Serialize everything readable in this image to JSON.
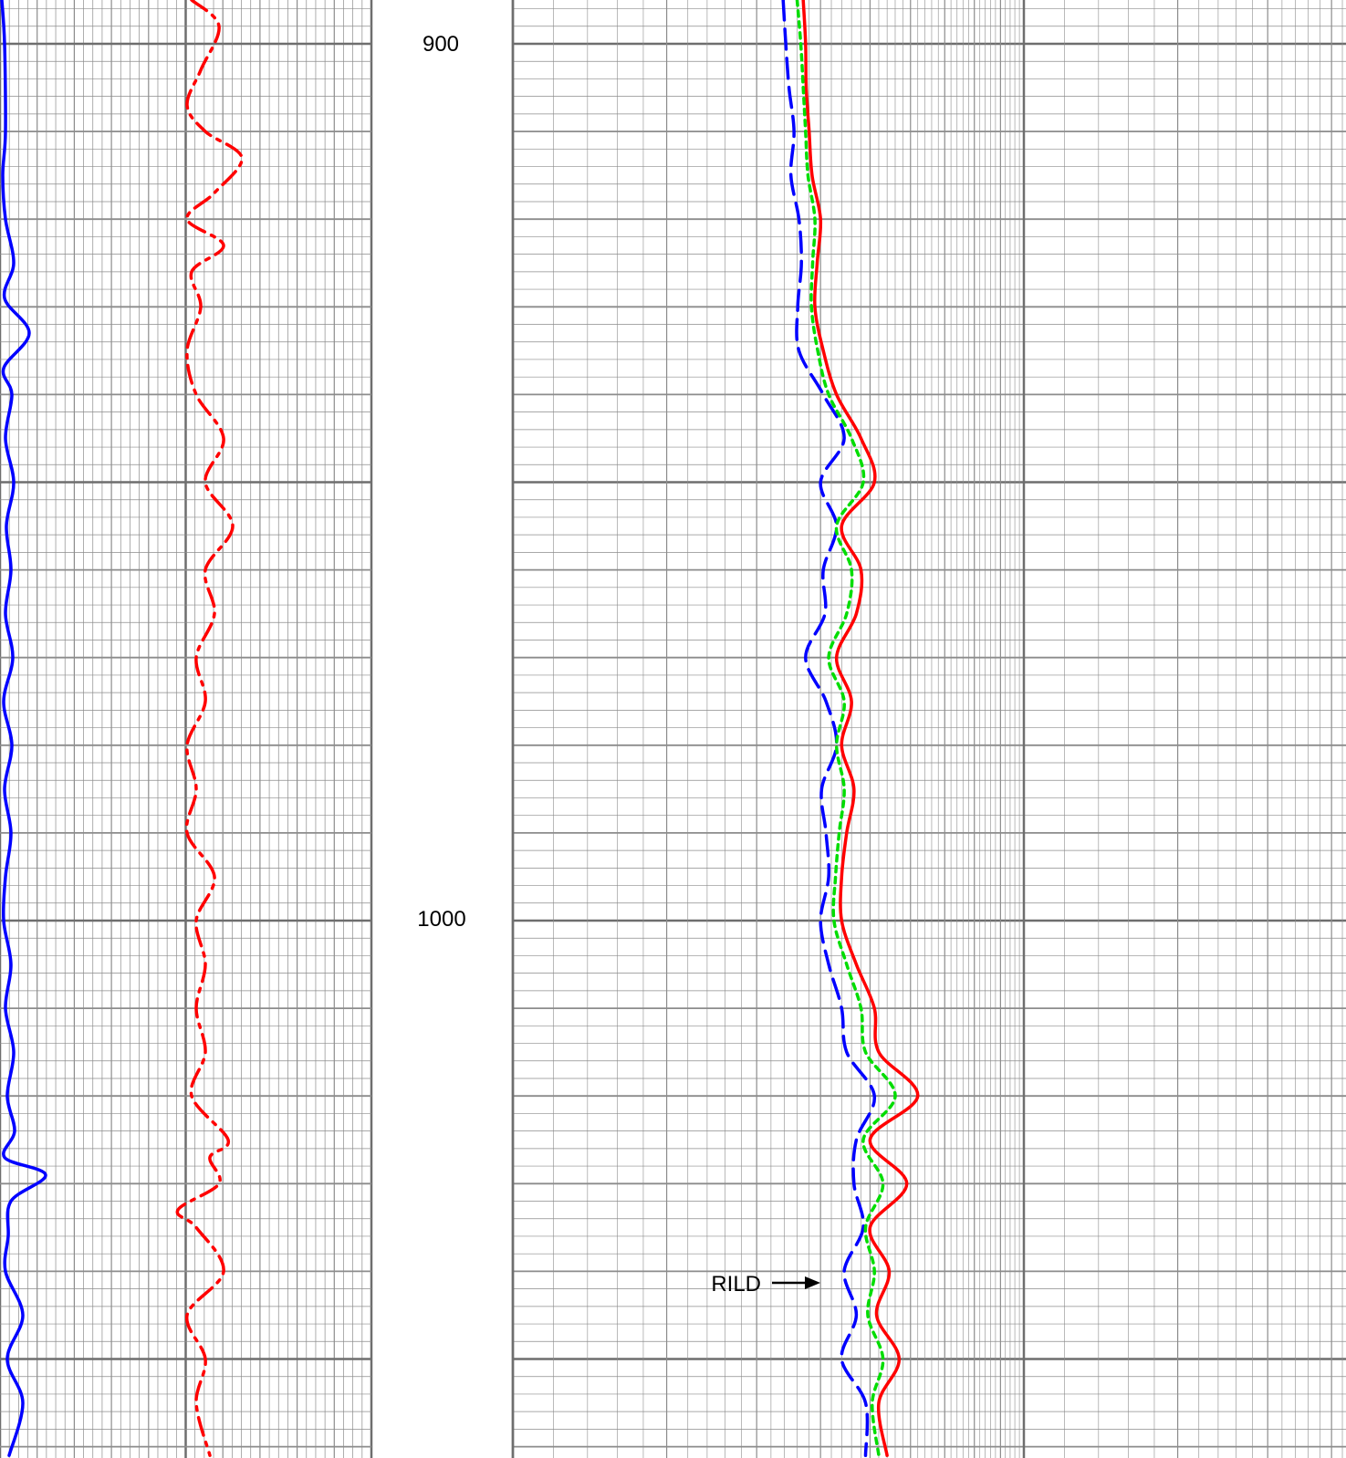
{
  "chart_data": {
    "type": "line",
    "title": "",
    "depth_axis": {
      "range": [
        895,
        1061
      ],
      "labels": [
        "900",
        "1000"
      ],
      "values": [
        900,
        1000
      ]
    },
    "grid": true,
    "colors": {
      "grid": "#8c8c8c",
      "grid_major": "#6e6e6e",
      "blue": "#0000ff",
      "red": "#ff0000",
      "green": "#00dd00"
    },
    "track1": {
      "scale": "linear",
      "series": [
        {
          "style": "solid",
          "color": "#0000ff",
          "depth": [
            895,
            900,
            910,
            915,
            920,
            925,
            929,
            933,
            937,
            940,
            945,
            950,
            955,
            960,
            965,
            970,
            975,
            980,
            985,
            990,
            995,
            1000,
            1005,
            1010,
            1015,
            1020,
            1024,
            1027,
            1029,
            1032,
            1036,
            1040,
            1045,
            1050,
            1055,
            1061
          ],
          "value": [
            0.2,
            0.5,
            0.6,
            0.3,
            0.6,
            1.5,
            0.5,
            3.2,
            0.4,
            1.3,
            0.6,
            1.5,
            0.7,
            1.2,
            0.6,
            1.4,
            0.4,
            1.3,
            0.5,
            1.2,
            0.6,
            0.4,
            1.2,
            0.6,
            1.5,
            0.8,
            1.6,
            0.5,
            5.0,
            1.2,
            0.9,
            0.6,
            2.5,
            0.8,
            2.5,
            1.0
          ]
        },
        {
          "style": "dashdot",
          "color": "#ff0000",
          "depth": [
            895,
            898,
            903,
            907,
            910,
            913,
            917,
            920,
            923,
            926,
            930,
            935,
            940,
            945,
            950,
            955,
            960,
            965,
            970,
            975,
            980,
            985,
            990,
            995,
            1000,
            1005,
            1010,
            1015,
            1020,
            1025,
            1027,
            1030,
            1033,
            1035,
            1040,
            1045,
            1050,
            1055,
            1061
          ],
          "value": [
            21,
            24,
            22,
            20.5,
            22.5,
            26.5,
            23.5,
            20.5,
            24.5,
            21,
            22,
            20.5,
            21.5,
            24.5,
            22.5,
            25.5,
            22.5,
            23.5,
            21.5,
            22.5,
            20.5,
            21.5,
            20.5,
            23.5,
            21.5,
            22.5,
            21.5,
            22.5,
            21,
            25,
            23,
            24,
            19.5,
            21.5,
            24.5,
            20.5,
            22.5,
            21.5,
            23
          ]
        }
      ]
    },
    "track2": {
      "scale": "log",
      "series": [
        {
          "style": "dashed",
          "color": "#0000ff",
          "depth": [
            895,
            900,
            905,
            910,
            915,
            920,
            925,
            930,
            935,
            940,
            945,
            950,
            955,
            960,
            965,
            970,
            975,
            980,
            985,
            990,
            995,
            1000,
            1005,
            1010,
            1015,
            1020,
            1025,
            1030,
            1035,
            1040,
            1045,
            1050,
            1055,
            1061
          ],
          "value": [
            3.38,
            3.42,
            3.47,
            3.55,
            3.5,
            3.63,
            3.67,
            3.61,
            3.63,
            4.05,
            4.45,
            4.0,
            4.3,
            4.05,
            4.08,
            3.74,
            4.1,
            4.3,
            4.02,
            4.1,
            4.15,
            4.0,
            4.15,
            4.4,
            4.5,
            5.1,
            4.7,
            4.65,
            4.85,
            4.45,
            4.7,
            4.4,
            4.9,
            4.9
          ]
        },
        {
          "style": "solid",
          "color": "#ff0000",
          "depth": [
            895,
            900,
            905,
            910,
            915,
            920,
            925,
            930,
            935,
            940,
            945,
            950,
            955,
            960,
            965,
            970,
            975,
            980,
            985,
            990,
            995,
            1000,
            1005,
            1010,
            1015,
            1020,
            1025,
            1030,
            1035,
            1040,
            1045,
            1050,
            1055,
            1061
          ],
          "value": [
            3.7,
            3.74,
            3.75,
            3.8,
            3.85,
            4.0,
            3.94,
            3.9,
            4.05,
            4.3,
            4.8,
            5.1,
            4.4,
            4.8,
            4.7,
            4.3,
            4.6,
            4.4,
            4.65,
            4.5,
            4.4,
            4.4,
            4.7,
            5.1,
            5.2,
            6.2,
            5.0,
            5.9,
            5.0,
            5.45,
            5.15,
            5.7,
            5.2,
            5.4
          ]
        },
        {
          "style": "dotted",
          "color": "#00dd00",
          "depth": [
            895,
            900,
            905,
            910,
            915,
            920,
            925,
            930,
            935,
            940,
            945,
            950,
            955,
            960,
            965,
            970,
            975,
            980,
            985,
            990,
            995,
            1000,
            1005,
            1010,
            1015,
            1020,
            1025,
            1030,
            1035,
            1040,
            1045,
            1050,
            1055,
            1061
          ],
          "value": [
            3.6,
            3.66,
            3.7,
            3.74,
            3.78,
            3.9,
            3.86,
            3.84,
            3.95,
            4.15,
            4.6,
            4.85,
            4.3,
            4.6,
            4.5,
            4.15,
            4.45,
            4.3,
            4.45,
            4.35,
            4.28,
            4.25,
            4.5,
            4.8,
            4.9,
            5.6,
            4.85,
            5.3,
            4.9,
            5.1,
            4.95,
            5.3,
            5.05,
            5.2
          ]
        }
      ]
    },
    "annotations": [
      {
        "text": "RILD",
        "depth": 1041.5,
        "value": 4.7
      }
    ]
  }
}
